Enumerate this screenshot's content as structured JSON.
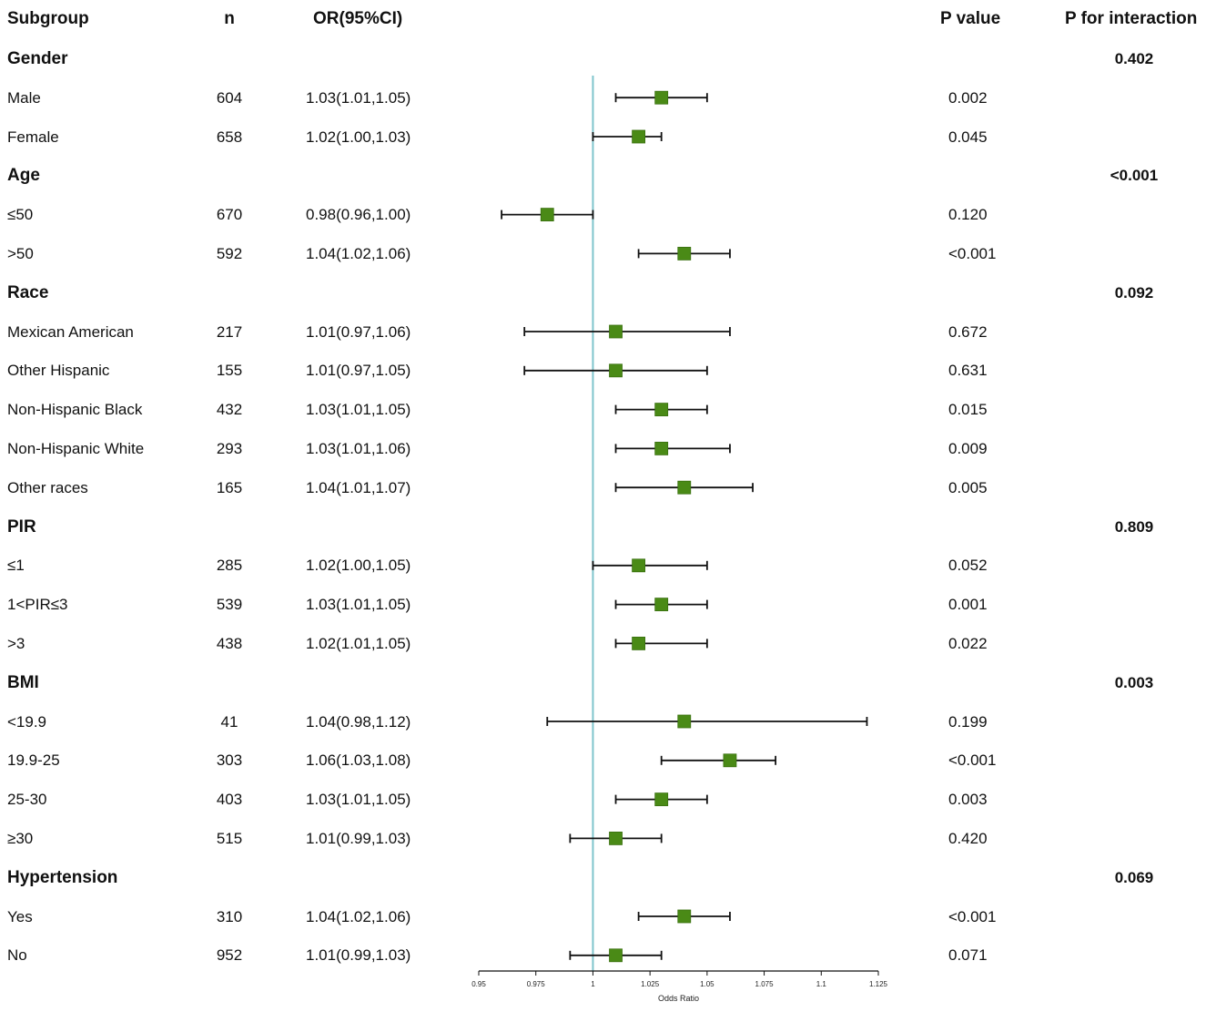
{
  "headers": {
    "subgroup": "Subgroup",
    "n": "n",
    "or": "OR(95%CI)",
    "p_value": "P value",
    "p_interaction": "P for interaction"
  },
  "rows": [
    {
      "type": "group",
      "label": "Gender",
      "p_interaction": "0.402"
    },
    {
      "type": "item",
      "label": "Male",
      "n": "604",
      "or": "1.03(1.01,1.05)",
      "p": "0.002"
    },
    {
      "type": "item",
      "label": "Female",
      "n": "658",
      "or": "1.02(1.00,1.03)",
      "p": "0.045"
    },
    {
      "type": "group",
      "label": "Age",
      "p_interaction": "<0.001"
    },
    {
      "type": "item",
      "label": "≤50",
      "n": "670",
      "or": "0.98(0.96,1.00)",
      "p": "0.120"
    },
    {
      "type": "item",
      "label": ">50",
      "n": "592",
      "or": "1.04(1.02,1.06)",
      "p": "<0.001"
    },
    {
      "type": "group",
      "label": "Race",
      "p_interaction": "0.092"
    },
    {
      "type": "item",
      "label": "Mexican American",
      "n": "217",
      "or": "1.01(0.97,1.06)",
      "p": "0.672"
    },
    {
      "type": "item",
      "label": "Other Hispanic",
      "n": "155",
      "or": "1.01(0.97,1.05)",
      "p": "0.631"
    },
    {
      "type": "item",
      "label": "Non-Hispanic Black",
      "n": "432",
      "or": "1.03(1.01,1.05)",
      "p": "0.015"
    },
    {
      "type": "item",
      "label": "Non-Hispanic White",
      "n": "293",
      "or": "1.03(1.01,1.06)",
      "p": "0.009"
    },
    {
      "type": "item",
      "label": "Other races",
      "n": "165",
      "or": "1.04(1.01,1.07)",
      "p": "0.005"
    },
    {
      "type": "group",
      "label": "PIR",
      "p_interaction": "0.809"
    },
    {
      "type": "item",
      "label": "≤1",
      "n": "285",
      "or": "1.02(1.00,1.05)",
      "p": "0.052"
    },
    {
      "type": "item",
      "label": "1<PIR≤3",
      "n": "539",
      "or": "1.03(1.01,1.05)",
      "p": "0.001"
    },
    {
      "type": "item",
      "label": ">3",
      "n": "438",
      "or": "1.02(1.01,1.05)",
      "p": "0.022"
    },
    {
      "type": "group",
      "label": "BMI",
      "p_interaction": "0.003"
    },
    {
      "type": "item",
      "label": "<19.9",
      "n": "41",
      "or": "1.04(0.98,1.12)",
      "p": "0.199"
    },
    {
      "type": "item",
      "label": "19.9-25",
      "n": "303",
      "or": "1.06(1.03,1.08)",
      "p": "<0.001"
    },
    {
      "type": "item",
      "label": "25-30",
      "n": "403",
      "or": "1.03(1.01,1.05)",
      "p": "0.003"
    },
    {
      "type": "item",
      "label": "≥30",
      "n": "515",
      "or": "1.01(0.99,1.03)",
      "p": "0.420"
    },
    {
      "type": "group",
      "label": "Hypertension",
      "p_interaction": "0.069"
    },
    {
      "type": "item",
      "label": "Yes",
      "n": "310",
      "or": "1.04(1.02,1.06)",
      "p": "<0.001"
    },
    {
      "type": "item",
      "label": "No",
      "n": "952",
      "or": "1.01(0.99,1.03)",
      "p": "0.071"
    }
  ],
  "chart_data": {
    "type": "forest",
    "xlabel": "Odds Ratio",
    "xlim": [
      0.95,
      1.125
    ],
    "ticks": [
      0.95,
      0.975,
      1,
      1.025,
      1.05,
      1.075,
      1.1,
      1.125
    ],
    "tick_labels": [
      "0.95",
      "0.975",
      "1",
      "1.025",
      "1.05",
      "1.075",
      "1.1",
      "1.125"
    ],
    "reference": 1,
    "colors": {
      "marker": "#4a8a16",
      "reference_line": "#7fc4cc",
      "whisker": "#111111"
    },
    "points": [
      {
        "label": "Male",
        "or": 1.03,
        "lower": 1.01,
        "upper": 1.05
      },
      {
        "label": "Female",
        "or": 1.02,
        "lower": 1.0,
        "upper": 1.03
      },
      {
        "label": "≤50",
        "or": 0.98,
        "lower": 0.96,
        "upper": 1.0
      },
      {
        "label": ">50",
        "or": 1.04,
        "lower": 1.02,
        "upper": 1.06
      },
      {
        "label": "Mexican American",
        "or": 1.01,
        "lower": 0.97,
        "upper": 1.06
      },
      {
        "label": "Other Hispanic",
        "or": 1.01,
        "lower": 0.97,
        "upper": 1.05
      },
      {
        "label": "Non-Hispanic Black",
        "or": 1.03,
        "lower": 1.01,
        "upper": 1.05
      },
      {
        "label": "Non-Hispanic White",
        "or": 1.03,
        "lower": 1.01,
        "upper": 1.06
      },
      {
        "label": "Other races",
        "or": 1.04,
        "lower": 1.01,
        "upper": 1.07
      },
      {
        "label": "≤1",
        "or": 1.02,
        "lower": 1.0,
        "upper": 1.05
      },
      {
        "label": "1<PIR≤3",
        "or": 1.03,
        "lower": 1.01,
        "upper": 1.05
      },
      {
        "label": ">3",
        "or": 1.02,
        "lower": 1.01,
        "upper": 1.05
      },
      {
        "label": "<19.9",
        "or": 1.04,
        "lower": 0.98,
        "upper": 1.12
      },
      {
        "label": "19.9-25",
        "or": 1.06,
        "lower": 1.03,
        "upper": 1.08
      },
      {
        "label": "25-30",
        "or": 1.03,
        "lower": 1.01,
        "upper": 1.05
      },
      {
        "label": "≥30",
        "or": 1.01,
        "lower": 0.99,
        "upper": 1.03
      },
      {
        "label": "Yes",
        "or": 1.04,
        "lower": 1.02,
        "upper": 1.06
      },
      {
        "label": "No",
        "or": 1.01,
        "lower": 0.99,
        "upper": 1.03
      }
    ]
  }
}
